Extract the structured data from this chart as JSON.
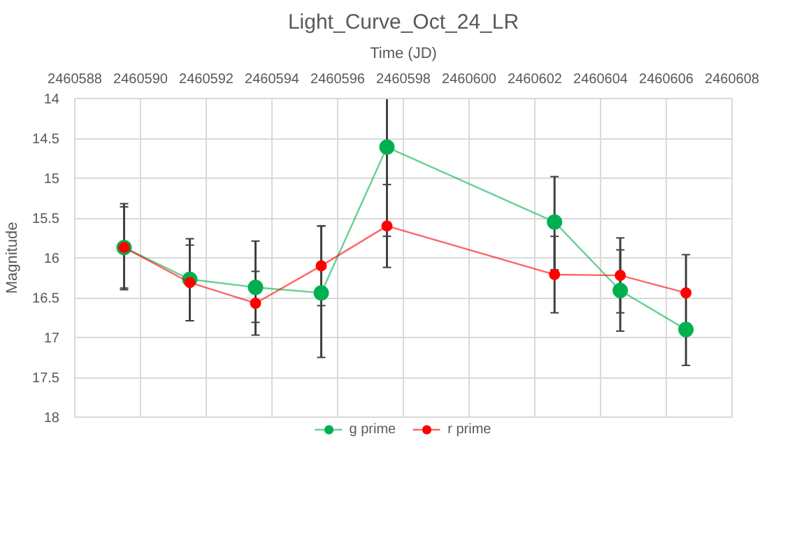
{
  "chart_data": {
    "type": "line",
    "title": "Light_Curve_Oct_24_LR",
    "xlabel": "Time (JD)",
    "ylabel": "Magnitude",
    "x": [
      2460589.5,
      2460591.5,
      2460593.5,
      2460595.5,
      2460597.5,
      2460602.6,
      2460604.6,
      2460606.6
    ],
    "series": [
      {
        "name": "g prime",
        "color": "#00b050",
        "values": [
          15.87,
          16.27,
          16.37,
          16.44,
          14.61,
          15.55,
          16.41,
          16.9
        ],
        "errors": [
          [
            15.32,
            16.4
          ],
          [
            15.76,
            16.79
          ],
          [
            15.79,
            16.81
          ],
          [
            15.6,
            17.25
          ],
          [
            14,
            15.73
          ],
          [
            14.98,
            16.15
          ],
          [
            15.9,
            16.92
          ],
          [
            16.45,
            17.35
          ]
        ]
      },
      {
        "name": "r prime",
        "color": "#ff0000",
        "values": [
          15.87,
          16.31,
          16.57,
          16.1,
          15.6,
          16.21,
          16.22,
          16.44
        ],
        "errors": [
          [
            15.36,
            16.38
          ],
          [
            15.84,
            16.79
          ],
          [
            16.17,
            16.97
          ],
          [
            15.6,
            16.6
          ],
          [
            15.08,
            16.12
          ],
          [
            15.73,
            16.69
          ],
          [
            15.75,
            16.69
          ],
          [
            15.96,
            16.44
          ]
        ]
      }
    ],
    "xlim": [
      2460588,
      2460608
    ],
    "xticks": [
      2460588,
      2460590,
      2460592,
      2460594,
      2460596,
      2460598,
      2460600,
      2460602,
      2460604,
      2460606,
      2460608
    ],
    "ylim": [
      18,
      14
    ],
    "yticks": [
      14,
      14.5,
      15,
      15.5,
      16,
      16.5,
      17,
      17.5,
      18
    ],
    "grid": true,
    "legend": "bottom",
    "marker": "circle",
    "line_style": "solid"
  }
}
